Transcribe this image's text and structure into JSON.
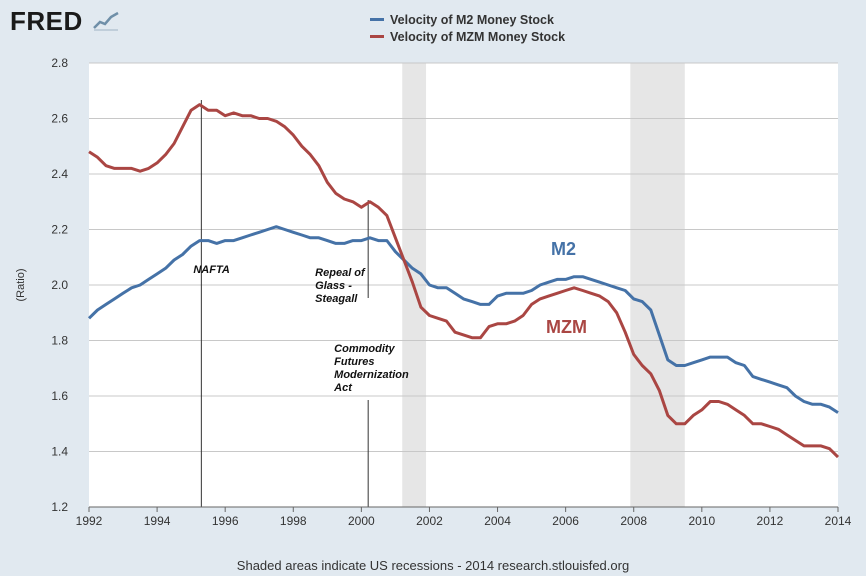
{
  "logo": {
    "text": "FRED",
    "icon": "trend-line-icon"
  },
  "legend": [
    {
      "label": "Velocity of M2 Money Stock",
      "color": "#4572a7"
    },
    {
      "label": "Velocity of MZM Money Stock",
      "color": "#aa4643"
    }
  ],
  "footer": "Shaded areas indicate US recessions - 2014 research.stlouisfed.org",
  "chart_data": {
    "type": "line",
    "title": "",
    "xlabel": "",
    "ylabel": "(Ratio)",
    "xlim": [
      1992,
      2014
    ],
    "ylim": [
      1.2,
      2.8
    ],
    "x_ticks": [
      1992,
      1994,
      1996,
      1998,
      2000,
      2002,
      2004,
      2006,
      2008,
      2010,
      2012,
      2014
    ],
    "y_ticks": [
      "1.2",
      "1.4",
      "1.6",
      "1.8",
      "2.0",
      "2.2",
      "2.4",
      "2.6",
      "2.8"
    ],
    "grid": true,
    "recessions": [
      [
        2001.2,
        2001.9
      ],
      [
        2007.9,
        2009.5
      ]
    ],
    "series": [
      {
        "name": "M2",
        "label": "M2",
        "color": "#4572a7",
        "points": [
          [
            1992.0,
            1.88
          ],
          [
            1992.25,
            1.91
          ],
          [
            1992.5,
            1.93
          ],
          [
            1992.75,
            1.95
          ],
          [
            1993.0,
            1.97
          ],
          [
            1993.25,
            1.99
          ],
          [
            1993.5,
            2.0
          ],
          [
            1993.75,
            2.02
          ],
          [
            1994.0,
            2.04
          ],
          [
            1994.25,
            2.06
          ],
          [
            1994.5,
            2.09
          ],
          [
            1994.75,
            2.11
          ],
          [
            1995.0,
            2.14
          ],
          [
            1995.25,
            2.16
          ],
          [
            1995.5,
            2.16
          ],
          [
            1995.75,
            2.15
          ],
          [
            1996.0,
            2.16
          ],
          [
            1996.25,
            2.16
          ],
          [
            1996.5,
            2.17
          ],
          [
            1996.75,
            2.18
          ],
          [
            1997.0,
            2.19
          ],
          [
            1997.25,
            2.2
          ],
          [
            1997.5,
            2.21
          ],
          [
            1997.75,
            2.2
          ],
          [
            1998.0,
            2.19
          ],
          [
            1998.25,
            2.18
          ],
          [
            1998.5,
            2.17
          ],
          [
            1998.75,
            2.17
          ],
          [
            1999.0,
            2.16
          ],
          [
            1999.25,
            2.15
          ],
          [
            1999.5,
            2.15
          ],
          [
            1999.75,
            2.16
          ],
          [
            2000.0,
            2.16
          ],
          [
            2000.25,
            2.17
          ],
          [
            2000.5,
            2.16
          ],
          [
            2000.75,
            2.16
          ],
          [
            2001.0,
            2.12
          ],
          [
            2001.25,
            2.09
          ],
          [
            2001.5,
            2.06
          ],
          [
            2001.75,
            2.04
          ],
          [
            2002.0,
            2.0
          ],
          [
            2002.25,
            1.99
          ],
          [
            2002.5,
            1.99
          ],
          [
            2002.75,
            1.97
          ],
          [
            2003.0,
            1.95
          ],
          [
            2003.25,
            1.94
          ],
          [
            2003.5,
            1.93
          ],
          [
            2003.75,
            1.93
          ],
          [
            2004.0,
            1.96
          ],
          [
            2004.25,
            1.97
          ],
          [
            2004.5,
            1.97
          ],
          [
            2004.75,
            1.97
          ],
          [
            2005.0,
            1.98
          ],
          [
            2005.25,
            2.0
          ],
          [
            2005.5,
            2.01
          ],
          [
            2005.75,
            2.02
          ],
          [
            2006.0,
            2.02
          ],
          [
            2006.25,
            2.03
          ],
          [
            2006.5,
            2.03
          ],
          [
            2006.75,
            2.02
          ],
          [
            2007.0,
            2.01
          ],
          [
            2007.25,
            2.0
          ],
          [
            2007.5,
            1.99
          ],
          [
            2007.75,
            1.98
          ],
          [
            2008.0,
            1.95
          ],
          [
            2008.25,
            1.94
          ],
          [
            2008.5,
            1.91
          ],
          [
            2008.75,
            1.82
          ],
          [
            2009.0,
            1.73
          ],
          [
            2009.25,
            1.71
          ],
          [
            2009.5,
            1.71
          ],
          [
            2009.75,
            1.72
          ],
          [
            2010.0,
            1.73
          ],
          [
            2010.25,
            1.74
          ],
          [
            2010.5,
            1.74
          ],
          [
            2010.75,
            1.74
          ],
          [
            2011.0,
            1.72
          ],
          [
            2011.25,
            1.71
          ],
          [
            2011.5,
            1.67
          ],
          [
            2011.75,
            1.66
          ],
          [
            2012.0,
            1.65
          ],
          [
            2012.25,
            1.64
          ],
          [
            2012.5,
            1.63
          ],
          [
            2012.75,
            1.6
          ],
          [
            2013.0,
            1.58
          ],
          [
            2013.25,
            1.57
          ],
          [
            2013.5,
            1.57
          ],
          [
            2013.75,
            1.56
          ],
          [
            2014.0,
            1.54
          ]
        ]
      },
      {
        "name": "MZM",
        "label": "MZM",
        "color": "#aa4643",
        "points": [
          [
            1992.0,
            2.48
          ],
          [
            1992.25,
            2.46
          ],
          [
            1992.5,
            2.43
          ],
          [
            1992.75,
            2.42
          ],
          [
            1993.0,
            2.42
          ],
          [
            1993.25,
            2.42
          ],
          [
            1993.5,
            2.41
          ],
          [
            1993.75,
            2.42
          ],
          [
            1994.0,
            2.44
          ],
          [
            1994.25,
            2.47
          ],
          [
            1994.5,
            2.51
          ],
          [
            1994.75,
            2.57
          ],
          [
            1995.0,
            2.63
          ],
          [
            1995.25,
            2.65
          ],
          [
            1995.5,
            2.63
          ],
          [
            1995.75,
            2.63
          ],
          [
            1996.0,
            2.61
          ],
          [
            1996.25,
            2.62
          ],
          [
            1996.5,
            2.61
          ],
          [
            1996.75,
            2.61
          ],
          [
            1997.0,
            2.6
          ],
          [
            1997.25,
            2.6
          ],
          [
            1997.5,
            2.59
          ],
          [
            1997.75,
            2.57
          ],
          [
            1998.0,
            2.54
          ],
          [
            1998.25,
            2.5
          ],
          [
            1998.5,
            2.47
          ],
          [
            1998.75,
            2.43
          ],
          [
            1999.0,
            2.37
          ],
          [
            1999.25,
            2.33
          ],
          [
            1999.5,
            2.31
          ],
          [
            1999.75,
            2.3
          ],
          [
            2000.0,
            2.28
          ],
          [
            2000.25,
            2.3
          ],
          [
            2000.5,
            2.28
          ],
          [
            2000.75,
            2.25
          ],
          [
            2001.0,
            2.17
          ],
          [
            2001.25,
            2.09
          ],
          [
            2001.5,
            2.01
          ],
          [
            2001.75,
            1.92
          ],
          [
            2002.0,
            1.89
          ],
          [
            2002.25,
            1.88
          ],
          [
            2002.5,
            1.87
          ],
          [
            2002.75,
            1.83
          ],
          [
            2003.0,
            1.82
          ],
          [
            2003.25,
            1.81
          ],
          [
            2003.5,
            1.81
          ],
          [
            2003.75,
            1.85
          ],
          [
            2004.0,
            1.86
          ],
          [
            2004.25,
            1.86
          ],
          [
            2004.5,
            1.87
          ],
          [
            2004.75,
            1.89
          ],
          [
            2005.0,
            1.93
          ],
          [
            2005.25,
            1.95
          ],
          [
            2005.5,
            1.96
          ],
          [
            2005.75,
            1.97
          ],
          [
            2006.0,
            1.98
          ],
          [
            2006.25,
            1.99
          ],
          [
            2006.5,
            1.98
          ],
          [
            2006.75,
            1.97
          ],
          [
            2007.0,
            1.96
          ],
          [
            2007.25,
            1.94
          ],
          [
            2007.5,
            1.9
          ],
          [
            2007.75,
            1.83
          ],
          [
            2008.0,
            1.75
          ],
          [
            2008.25,
            1.71
          ],
          [
            2008.5,
            1.68
          ],
          [
            2008.75,
            1.62
          ],
          [
            2009.0,
            1.53
          ],
          [
            2009.25,
            1.5
          ],
          [
            2009.5,
            1.5
          ],
          [
            2009.75,
            1.53
          ],
          [
            2010.0,
            1.55
          ],
          [
            2010.25,
            1.58
          ],
          [
            2010.5,
            1.58
          ],
          [
            2010.75,
            1.57
          ],
          [
            2011.0,
            1.55
          ],
          [
            2011.25,
            1.53
          ],
          [
            2011.5,
            1.5
          ],
          [
            2011.75,
            1.5
          ],
          [
            2012.0,
            1.49
          ],
          [
            2012.25,
            1.48
          ],
          [
            2012.5,
            1.46
          ],
          [
            2012.75,
            1.44
          ],
          [
            2013.0,
            1.42
          ],
          [
            2013.25,
            1.42
          ],
          [
            2013.5,
            1.42
          ],
          [
            2013.75,
            1.41
          ],
          [
            2014.0,
            1.38
          ]
        ]
      }
    ],
    "annotations": [
      {
        "lines": [
          "NAFTA"
        ],
        "x": 1995.3
      },
      {
        "lines": [
          "Repeal of",
          "Glass -",
          "Steagall"
        ],
        "x": 2000.2
      },
      {
        "lines": [
          "Commodity",
          "Futures",
          "Modernization",
          "Act"
        ],
        "x": 2000.2
      }
    ]
  }
}
